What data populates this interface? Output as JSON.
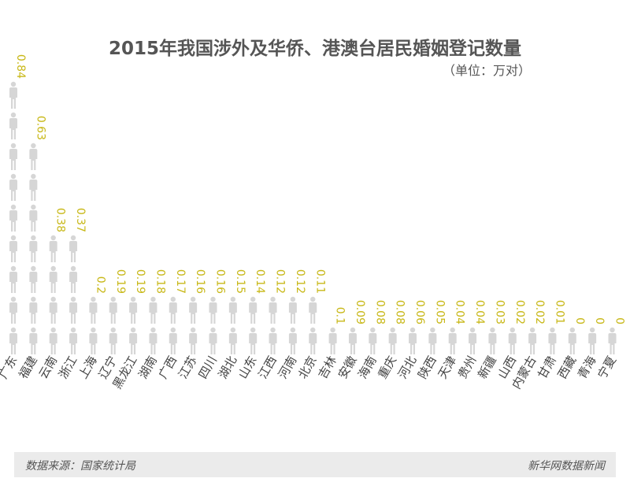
{
  "title": "2015年我国涉外及华侨、港澳台居民婚姻登记数量",
  "unit": "（单位：万对）",
  "footer": {
    "source": "数据来源：国家统计局",
    "brand": "新华网数据新闻"
  },
  "colors": {
    "filled": "#c8b818",
    "empty": "#d6d6d6",
    "label": "#c8b818"
  },
  "icon": "person-icon",
  "chart_data": {
    "type": "bar",
    "title": "2015年我国涉外及华侨、港澳台居民婚姻登记数量",
    "ylabel": "（单位：万对）",
    "categories": [
      "广东",
      "福建",
      "云南",
      "浙江",
      "上海",
      "辽宁",
      "黑龙江",
      "湖南",
      "广西",
      "江苏",
      "四川",
      "湖北",
      "山东",
      "江西",
      "河南",
      "北京",
      "吉林",
      "安徽",
      "海南",
      "重庆",
      "河北",
      "陕西",
      "天津",
      "贵州",
      "新疆",
      "山西",
      "内蒙古",
      "甘肃",
      "西藏",
      "青海",
      "宁夏"
    ],
    "values": [
      0.84,
      0.63,
      0.38,
      0.37,
      0.2,
      0.19,
      0.19,
      0.18,
      0.17,
      0.16,
      0.16,
      0.15,
      0.14,
      0.12,
      0.12,
      0.11,
      0.1,
      0.09,
      0.08,
      0.08,
      0.06,
      0.05,
      0.04,
      0.04,
      0.03,
      0.02,
      0.02,
      0.01,
      0,
      0,
      0
    ],
    "labels": [
      "0.84",
      "0.63",
      "0.38",
      "0.37",
      "0.2",
      "0.19",
      "0.19",
      "0.18",
      "0.17",
      "0.16",
      "0.16",
      "0.15",
      "0.14",
      "0.12",
      "0.12",
      "0.11",
      "0.1",
      "0.09",
      "0.08",
      "0.08",
      "0.06",
      "0.05",
      "0.04",
      "0.04",
      "0.03",
      "0.02",
      "0.02",
      "0.01",
      "0",
      "0",
      "0"
    ],
    "unit_per_icon": 0.1
  }
}
